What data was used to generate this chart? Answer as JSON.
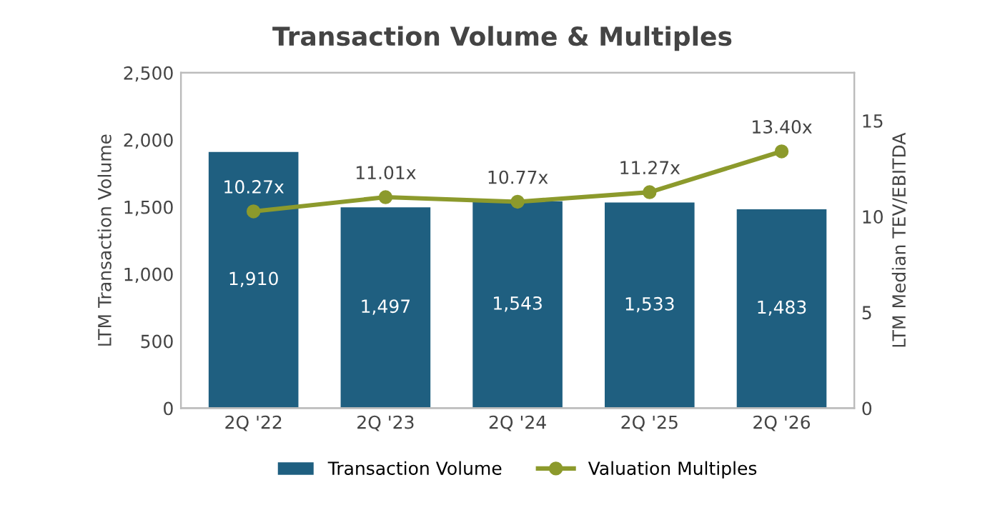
{
  "chart_data": {
    "type": "bar",
    "title": "Transaction Volume & Multiples",
    "ylabel": "LTM Transaction Volume",
    "y2label": "LTM Median TEV/EBITDA",
    "categories": [
      "2Q '22",
      "2Q '23",
      "2Q '24",
      "2Q '25",
      "2Q '26"
    ],
    "series": [
      {
        "name": "Transaction Volume",
        "color": "#1f5f80",
        "values": [
          1910,
          1497,
          1543,
          1533,
          1483
        ],
        "value_labels": [
          "1,910",
          "1,497",
          "1,543",
          "1,533",
          "1,483"
        ]
      },
      {
        "name": "Valuation Multiples",
        "type": "line",
        "axis": "y2",
        "color": "#8c9a2c",
        "marker": "circle",
        "values": [
          10.27,
          11.01,
          10.77,
          11.27,
          13.4
        ],
        "value_labels": [
          "10.27x",
          "11.01x",
          "10.77x",
          "11.27x",
          "13.40x"
        ]
      }
    ],
    "ylim": [
      0,
      2500
    ],
    "yticks": [
      {
        "value": 0,
        "label": "0"
      },
      {
        "value": 500,
        "label": "500"
      },
      {
        "value": 1000,
        "label": "1,000"
      },
      {
        "value": 1500,
        "label": "1,500"
      },
      {
        "value": 2000,
        "label": "2,000"
      },
      {
        "value": 2500,
        "label": "2,500"
      }
    ],
    "y2lim": [
      0,
      17.5
    ],
    "y2ticks": [
      0,
      5,
      10,
      15
    ],
    "grid": false,
    "legend": "bottom"
  }
}
